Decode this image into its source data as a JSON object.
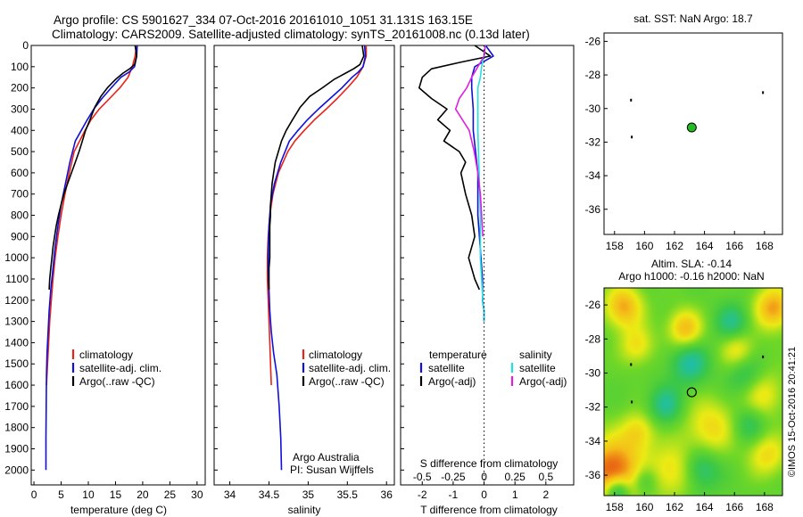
{
  "header": {
    "line1": "Argo profile: CS 5901627_334 07-Oct-2016 20161010_1051 31.131S 163.15E",
    "line2": "Climatology: CARS2009. Satellite-adjusted climatology: synTS_20161008.nc (0.13d later)"
  },
  "colors": {
    "climatology": "#e8231a",
    "satellite": "#1010d8",
    "argo": "#000000",
    "salinity_sat": "#22e0e0",
    "salinity_argo": "#e020e0",
    "marker": "#22bb22"
  },
  "chart_data": [
    {
      "type": "line",
      "id": "temperature",
      "xlabel": "temperature (deg C)",
      "ylabel": "",
      "xlim": [
        -0.5,
        31.5
      ],
      "ylim": [
        2070,
        0
      ],
      "xticks": [
        0,
        5,
        10,
        15,
        20,
        25,
        30
      ],
      "yticks": [
        0,
        100,
        200,
        300,
        400,
        500,
        600,
        700,
        800,
        900,
        1000,
        1100,
        1200,
        1300,
        1400,
        1500,
        1600,
        1700,
        1800,
        1900,
        2000
      ],
      "legend": [
        "climatology",
        "satellite-adj. clim.",
        "Argo(..raw -QC)"
      ],
      "series": [
        {
          "name": "climatology",
          "color": "#e8231a",
          "x": [
            18.9,
            18.6,
            18.1,
            17.3,
            15.8,
            13.9,
            12.0,
            10.5,
            9.4,
            8.4,
            7.4,
            6.5,
            5.7,
            5.0,
            4.4,
            3.9,
            3.5,
            3.2,
            2.9,
            2.7,
            2.5,
            2.3
          ],
          "y": [
            0,
            50,
            100,
            150,
            200,
            250,
            300,
            350,
            400,
            450,
            500,
            600,
            700,
            800,
            900,
            1000,
            1100,
            1200,
            1300,
            1400,
            1500,
            1600
          ]
        },
        {
          "name": "satellite-adj. clim.",
          "color": "#1010d8",
          "x": [
            19.0,
            18.9,
            18.5,
            17.5,
            16.0,
            14.2,
            12.5,
            11.0,
            9.8,
            8.7,
            7.6,
            6.6,
            5.8,
            5.0,
            4.4,
            3.9,
            3.5,
            3.1,
            2.8,
            2.6,
            2.4,
            2.3,
            2.25,
            2.2,
            2.2
          ],
          "y": [
            0,
            50,
            100,
            125,
            150,
            200,
            250,
            300,
            350,
            400,
            450,
            550,
            650,
            750,
            850,
            950,
            1050,
            1150,
            1250,
            1350,
            1450,
            1550,
            1700,
            1850,
            2000
          ]
        },
        {
          "name": "Argo(..raw -QC)",
          "color": "#000000",
          "x": [
            18.6,
            18.9,
            18.5,
            17.6,
            16.4,
            15.0,
            13.5,
            12.3,
            11.2,
            10.3,
            9.5,
            8.9,
            8.3,
            7.6,
            6.9,
            6.2,
            5.5,
            5.0,
            4.5,
            4.1,
            3.8,
            3.5,
            3.3,
            3.1,
            2.9,
            2.8
          ],
          "y": [
            0,
            50,
            90,
            110,
            130,
            160,
            200,
            240,
            290,
            350,
            400,
            450,
            500,
            550,
            600,
            650,
            700,
            750,
            800,
            850,
            900,
            950,
            1000,
            1050,
            1100,
            1150
          ]
        }
      ]
    },
    {
      "type": "line",
      "id": "salinity",
      "xlabel": "salinity",
      "ylabel": "",
      "xlim": [
        33.8,
        36.1
      ],
      "ylim": [
        2070,
        0
      ],
      "xticks": [
        34,
        34.5,
        35,
        35.5,
        36
      ],
      "legend": [
        "climatology",
        "satellite-adj. clim.",
        "Argo(..raw -QC)"
      ],
      "annotation": [
        "Argo Australia",
        "PI: Susan Wijffels"
      ],
      "series": [
        {
          "name": "climatology",
          "color": "#e8231a",
          "x": [
            35.74,
            35.74,
            35.7,
            35.62,
            35.5,
            35.37,
            35.23,
            35.08,
            34.95,
            34.83,
            34.74,
            34.62,
            34.55,
            34.51,
            34.49,
            34.48,
            34.48,
            34.49,
            34.5,
            34.51,
            34.52,
            34.53
          ],
          "y": [
            0,
            50,
            100,
            150,
            200,
            250,
            300,
            350,
            400,
            450,
            500,
            600,
            700,
            800,
            900,
            1000,
            1100,
            1200,
            1300,
            1400,
            1500,
            1600
          ]
        },
        {
          "name": "satellite-adj. clim.",
          "color": "#1010d8",
          "x": [
            35.72,
            35.73,
            35.7,
            35.64,
            35.56,
            35.43,
            35.28,
            35.13,
            34.99,
            34.87,
            34.76,
            34.65,
            34.57,
            34.52,
            34.5,
            34.49,
            34.49,
            34.5,
            34.51,
            34.53,
            34.56,
            34.6,
            34.63,
            34.65,
            34.66
          ],
          "y": [
            0,
            50,
            100,
            125,
            150,
            200,
            250,
            300,
            350,
            400,
            450,
            550,
            650,
            750,
            850,
            950,
            1050,
            1150,
            1250,
            1350,
            1450,
            1550,
            1700,
            1850,
            2000
          ]
        },
        {
          "name": "Argo(..raw -QC)",
          "color": "#000000",
          "x": [
            35.69,
            35.71,
            35.66,
            35.58,
            35.48,
            35.33,
            35.18,
            35.02,
            34.9,
            34.8,
            34.72,
            34.66,
            34.62,
            34.58,
            34.56,
            34.54,
            34.53,
            34.52,
            34.52,
            34.51,
            34.51,
            34.51,
            34.51,
            34.5,
            34.5,
            34.5
          ],
          "y": [
            0,
            50,
            90,
            110,
            130,
            160,
            200,
            240,
            290,
            350,
            400,
            450,
            500,
            550,
            600,
            650,
            700,
            750,
            800,
            850,
            900,
            950,
            1000,
            1050,
            1100,
            1150
          ]
        }
      ]
    },
    {
      "type": "line",
      "id": "difference",
      "xlabel": "T difference from climatology",
      "xlabel_top": "S difference from climatology",
      "t_xlim": [
        -2.7,
        2.9
      ],
      "t_xticks": [
        -2,
        -1,
        0,
        1,
        2
      ],
      "s_xticks": [
        -0.5,
        -0.25,
        0,
        0.25,
        0.5
      ],
      "s_scale": 4,
      "ylim": [
        2070,
        0
      ],
      "legend_temperature": {
        "title": "temperature",
        "items": [
          "satellite",
          "Argo(-adj)"
        ]
      },
      "legend_salinity": {
        "title": "salinity",
        "items": [
          "satellite",
          "Argo(-adj)"
        ]
      },
      "series": [
        {
          "name": "temperature satellite",
          "color": "#1010d8",
          "quantity": "T",
          "x": [
            0.05,
            0.3,
            -0.3,
            -0.4,
            -0.4,
            -0.35,
            -0.35,
            -0.2,
            -0.2,
            -0.1,
            -0.05,
            -0.05,
            0,
            0
          ],
          "y": [
            0,
            50,
            100,
            150,
            200,
            300,
            400,
            600,
            800,
            1000,
            1100,
            1200,
            1250,
            1300
          ]
        },
        {
          "name": "temperature Argo(-adj)",
          "color": "#000000",
          "quantity": "T",
          "x": [
            -0.3,
            0.2,
            -0.8,
            -1.7,
            -2.0,
            -2.1,
            -1.7,
            -1.2,
            -1.5,
            -1.1,
            -1.3,
            -0.8,
            -0.6,
            -0.75,
            -0.6,
            -0.4,
            -0.3,
            -0.5,
            -0.4,
            -0.3,
            -0.15
          ],
          "y": [
            0,
            50,
            80,
            110,
            150,
            200,
            250,
            300,
            350,
            400,
            450,
            500,
            550,
            600,
            700,
            800,
            900,
            1000,
            1050,
            1100,
            1150
          ]
        },
        {
          "name": "salinity satellite",
          "color": "#22e0e0",
          "quantity": "S",
          "x": [
            0.01,
            0.0,
            -0.02,
            -0.03,
            -0.05,
            -0.05,
            -0.05,
            -0.04,
            -0.03,
            -0.03,
            -0.02,
            -0.01,
            0,
            0
          ],
          "y": [
            0,
            50,
            100,
            150,
            200,
            300,
            400,
            600,
            800,
            1000,
            1100,
            1200,
            1250,
            1300
          ]
        },
        {
          "name": "salinity Argo(-adj)",
          "color": "#e020e0",
          "quantity": "S",
          "x": [
            0.01,
            0.0,
            -0.03,
            -0.06,
            -0.1,
            -0.14,
            -0.2,
            -0.23,
            -0.12,
            -0.08,
            -0.05,
            -0.03,
            -0.02,
            -0.01
          ],
          "y": [
            0,
            50,
            80,
            110,
            150,
            200,
            250,
            300,
            400,
            500,
            600,
            700,
            800,
            900
          ]
        }
      ]
    },
    {
      "type": "scatter",
      "id": "sst-map",
      "title": "sat. SST: NaN Argo: 18.7",
      "xlim": [
        157.3,
        169.2
      ],
      "ylim": [
        -37.5,
        -25.5
      ],
      "xticks": [
        158,
        160,
        162,
        164,
        166,
        168
      ],
      "yticks": [
        -26,
        -28,
        -30,
        -32,
        -34,
        -36
      ],
      "points": [
        {
          "x": 163.15,
          "y": -31.13,
          "kind": "profile"
        },
        {
          "x": 159.1,
          "y": -29.5,
          "kind": "land"
        },
        {
          "x": 159.15,
          "y": -31.7,
          "kind": "land"
        },
        {
          "x": 167.9,
          "y": -29.05,
          "kind": "land"
        }
      ]
    },
    {
      "type": "heatmap",
      "id": "sla-map",
      "title": [
        "Altim. SLA: -0.14",
        "Argo h1000: -0.16 h2000: NaN"
      ],
      "xlim": [
        157.3,
        169.2
      ],
      "ylim": [
        -37.2,
        -25.0
      ],
      "xticks": [
        158,
        160,
        162,
        164,
        166,
        168
      ],
      "yticks": [
        -26,
        -28,
        -30,
        -32,
        -34,
        -36
      ],
      "profile": {
        "x": 163.15,
        "y": -31.13
      },
      "land": [
        {
          "x": 159.1,
          "y": -29.5
        },
        {
          "x": 159.15,
          "y": -31.7
        },
        {
          "x": 167.9,
          "y": -29.05
        }
      ],
      "side_label": "©IMOS 15-Oct-2016 20:41:21",
      "blobs": [
        {
          "x": 158.6,
          "y": -26.1,
          "r": 0.9,
          "v": 0.8
        },
        {
          "x": 162.7,
          "y": -27.4,
          "r": 0.8,
          "v": 0.75
        },
        {
          "x": 168.6,
          "y": -26.2,
          "r": 0.9,
          "v": 0.85
        },
        {
          "x": 166.2,
          "y": -28.6,
          "r": 0.8,
          "v": 0.55
        },
        {
          "x": 164.4,
          "y": -33.2,
          "r": 1.2,
          "v": 0.55
        },
        {
          "x": 167.8,
          "y": -31.2,
          "r": 1.0,
          "v": 0.55
        },
        {
          "x": 162.0,
          "y": -35.7,
          "r": 1.1,
          "v": 0.55
        },
        {
          "x": 157.9,
          "y": -35.8,
          "r": 1.4,
          "v": 1.1
        },
        {
          "x": 159.6,
          "y": -33.4,
          "r": 0.8,
          "v": 0.5
        },
        {
          "x": 159.5,
          "y": -28.4,
          "r": 0.8,
          "v": 0.5
        },
        {
          "x": 168.2,
          "y": -34.8,
          "r": 0.9,
          "v": 0.55
        },
        {
          "x": 163.0,
          "y": -29.4,
          "r": 0.9,
          "v": -0.55
        },
        {
          "x": 161.4,
          "y": -31.9,
          "r": 0.8,
          "v": -0.5
        },
        {
          "x": 165.9,
          "y": -27.1,
          "r": 0.8,
          "v": -0.5
        },
        {
          "x": 166.8,
          "y": -30.2,
          "r": 0.9,
          "v": -0.45
        },
        {
          "x": 163.7,
          "y": -35.6,
          "r": 0.9,
          "v": -0.55
        },
        {
          "x": 158.2,
          "y": -37.0,
          "r": 0.6,
          "v": -0.9
        },
        {
          "x": 160.0,
          "y": -36.3,
          "r": 0.6,
          "v": -0.45
        },
        {
          "x": 167.0,
          "y": -33.0,
          "r": 0.8,
          "v": -0.4
        }
      ]
    }
  ]
}
